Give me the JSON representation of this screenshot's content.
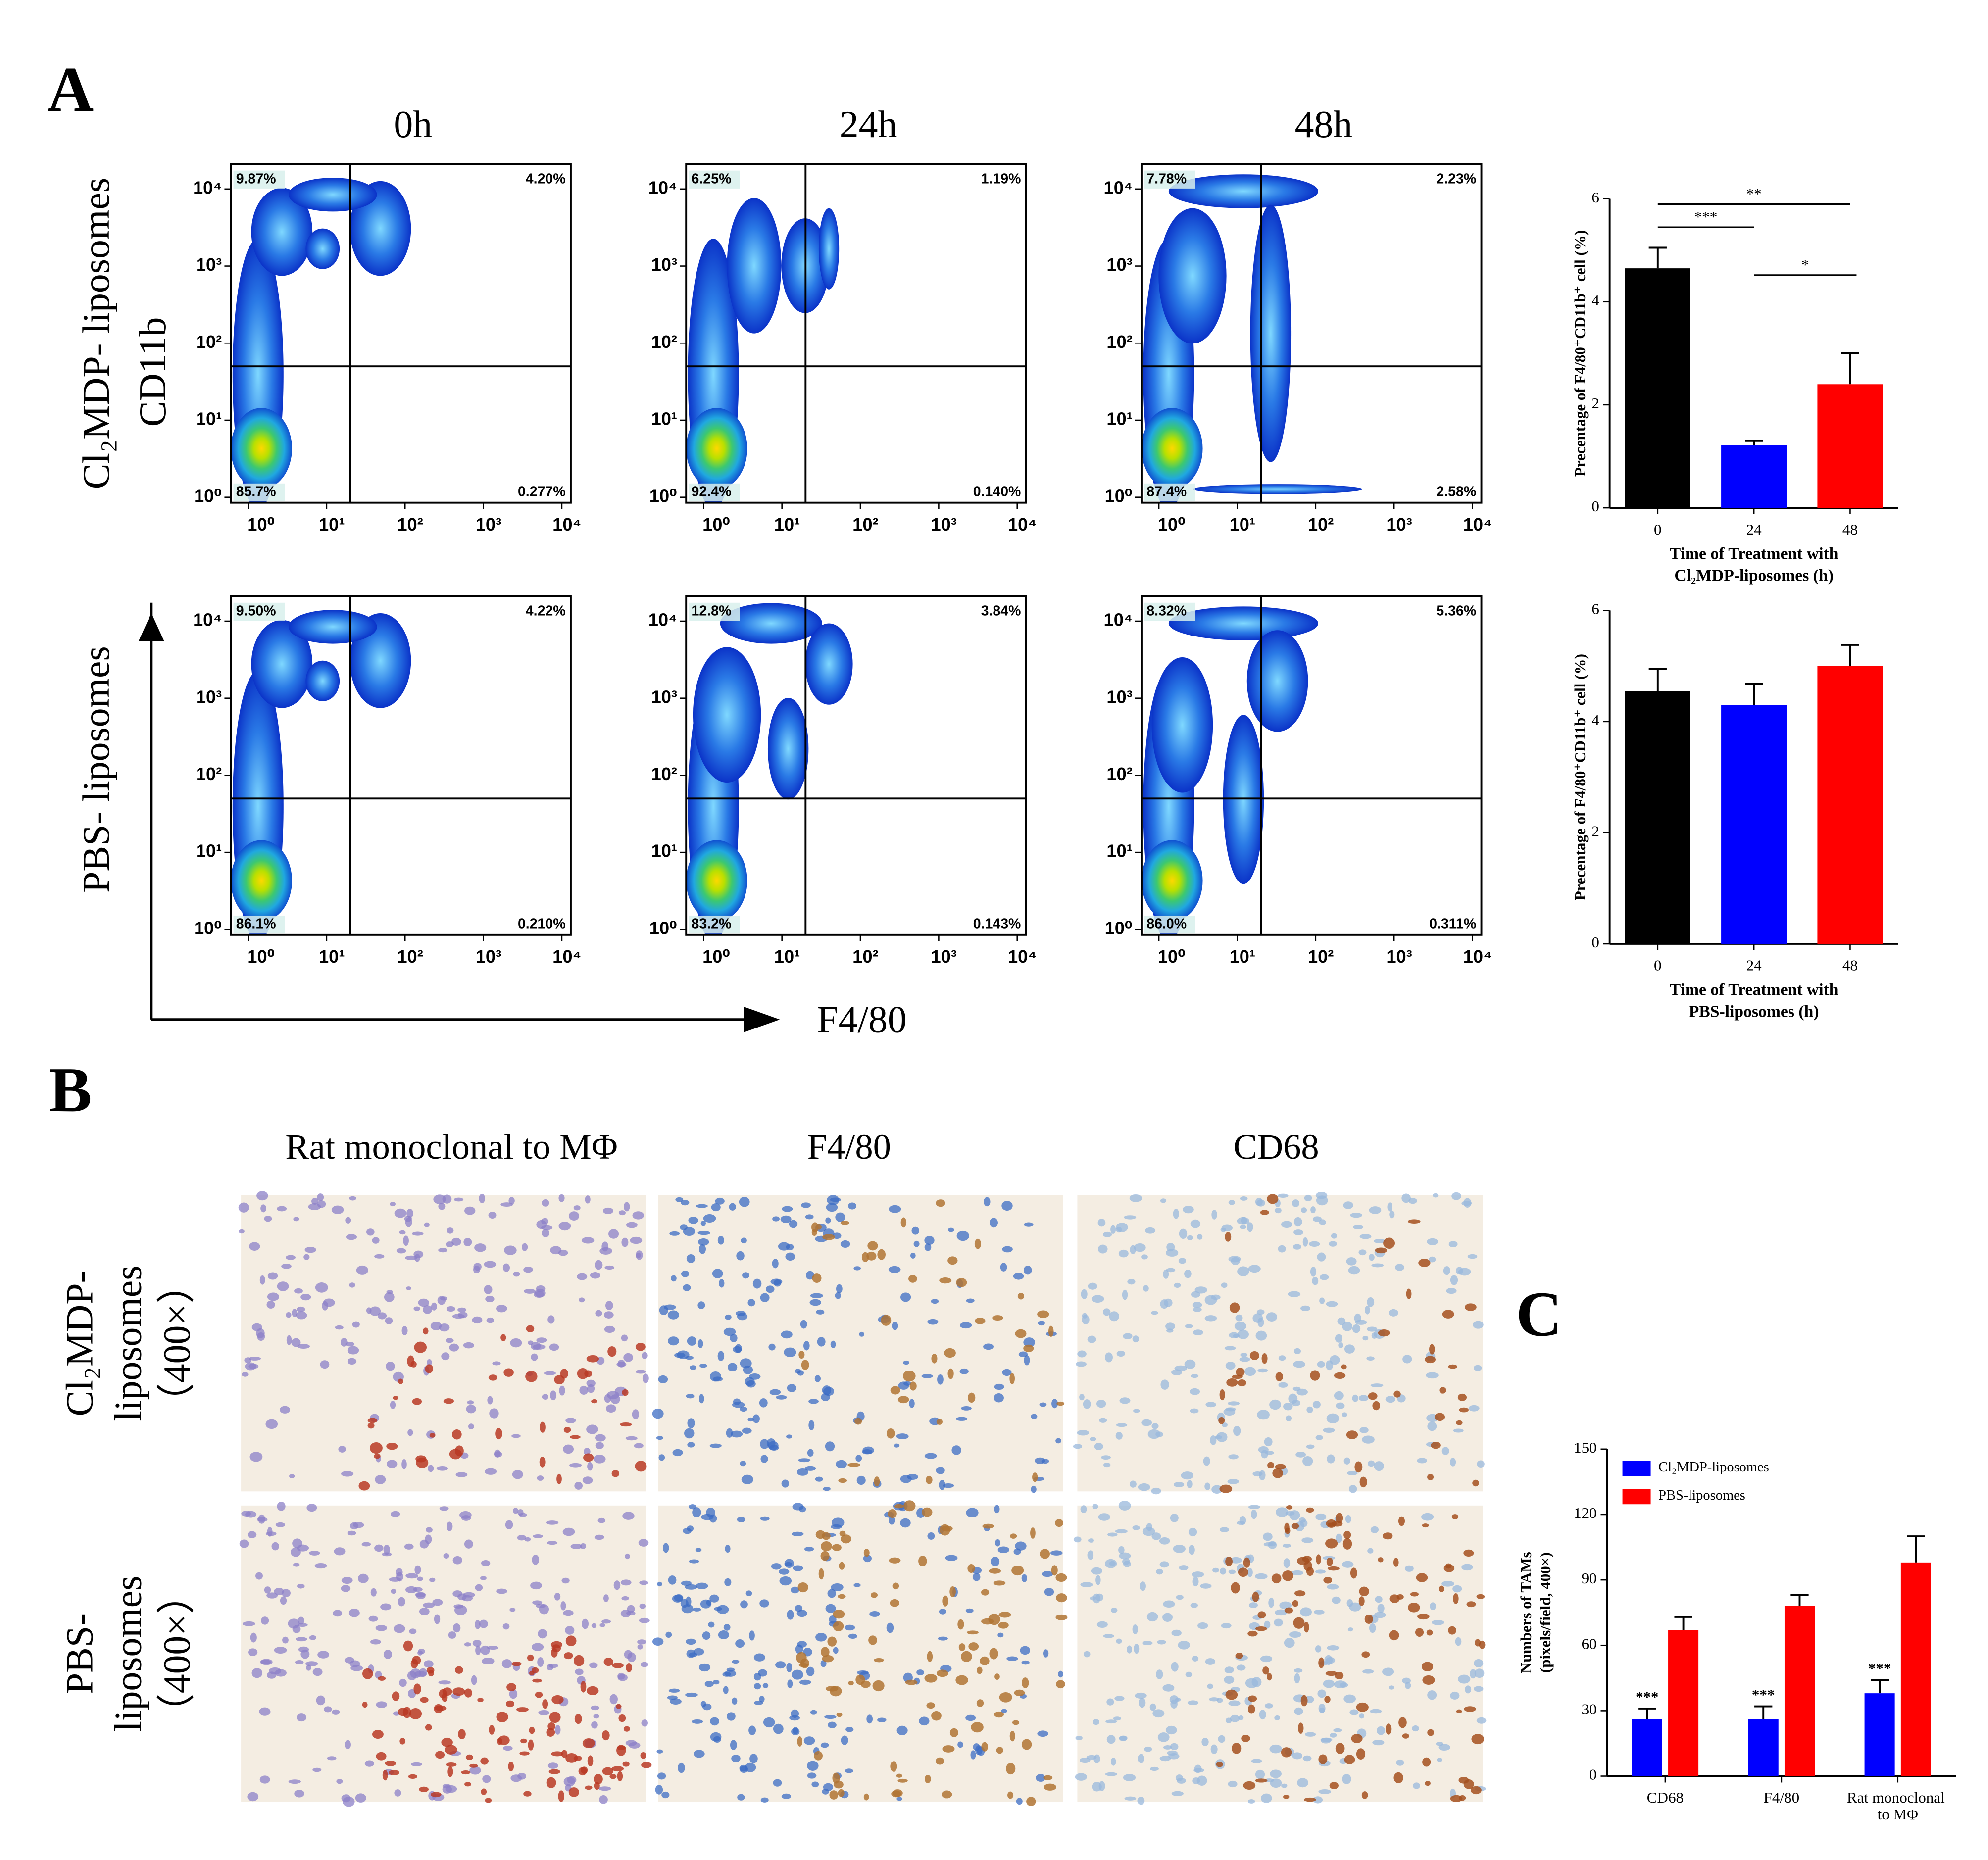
{
  "panel_labels": [
    "A",
    "B",
    "C"
  ],
  "flow_cytometry": {
    "columns": [
      "0h",
      "24h",
      "48h"
    ],
    "rows": [
      "Cl₂MDP- liposomes",
      "PBS- liposomes"
    ],
    "y_axis_label": "CD11b",
    "x_axis_label": "F4/80",
    "log_scale": true,
    "xlim": [
      0.6,
      13000
    ],
    "ylim": [
      0.85,
      21000
    ],
    "xticks": [
      {
        "value": 1,
        "label": "10⁰"
      },
      {
        "value": 10,
        "label": "10¹"
      },
      {
        "value": 100,
        "label": "10²"
      },
      {
        "value": 1000,
        "label": "10³"
      },
      {
        "value": 10000,
        "label": "10⁴"
      }
    ],
    "yticks": [
      {
        "value": 1,
        "label": "10⁰"
      },
      {
        "value": 10,
        "label": "10¹"
      },
      {
        "value": 100,
        "label": "10²"
      },
      {
        "value": 1000,
        "label": "10³"
      },
      {
        "value": 10000,
        "label": "10⁴"
      }
    ],
    "gates": {
      "x": 20,
      "y": 50
    },
    "plots": [
      {
        "quadrants": {
          "upper_left": "9.87%",
          "upper_right": "4.20%",
          "lower_left": "85.7%",
          "lower_right": "0.277%"
        }
      },
      {
        "quadrants": {
          "upper_left": "6.25%",
          "upper_right": "1.19%",
          "lower_left": "92.4%",
          "lower_right": "0.140%"
        }
      },
      {
        "quadrants": {
          "upper_left": "7.78%",
          "upper_right": "2.23%",
          "lower_left": "87.4%",
          "lower_right": "2.58%"
        }
      },
      {
        "quadrants": {
          "upper_left": "9.50%",
          "upper_right": "4.22%",
          "lower_left": "86.1%",
          "lower_right": "0.210%"
        }
      },
      {
        "quadrants": {
          "upper_left": "12.8%",
          "upper_right": "3.84%",
          "lower_left": "83.2%",
          "lower_right": "0.143%"
        }
      },
      {
        "quadrants": {
          "upper_left": "8.32%",
          "upper_right": "5.36%",
          "lower_left": "86.0%",
          "lower_right": "0.311%"
        }
      }
    ]
  },
  "chart_data": [
    {
      "type": "bar",
      "categories": [
        "0",
        "24",
        "48"
      ],
      "values": [
        4.65,
        1.22,
        2.4
      ],
      "errors": [
        0.4,
        0.08,
        0.6
      ],
      "colors": [
        "#000000",
        "#0000ff",
        "#ff0000"
      ],
      "ylim": [
        0,
        6
      ],
      "yticks": [
        0,
        2,
        4,
        6
      ],
      "y_label": "Precentage of F4/80⁺CD11b⁺ cell (%)",
      "x_label": [
        "Time of Treatment with",
        "Cl₂MDP-liposomes (h)"
      ],
      "annotations": [
        {
          "text": "***",
          "between": [
            0,
            1
          ]
        },
        {
          "text": "**",
          "between": [
            0,
            2
          ]
        },
        {
          "text": "*",
          "between": [
            1,
            2
          ]
        }
      ]
    },
    {
      "type": "bar",
      "categories": [
        "0",
        "24",
        "48"
      ],
      "values": [
        4.55,
        4.3,
        5.0
      ],
      "errors": [
        0.4,
        0.38,
        0.38
      ],
      "colors": [
        "#000000",
        "#0000ff",
        "#ff0000"
      ],
      "ylim": [
        0,
        6
      ],
      "yticks": [
        0,
        2,
        4,
        6
      ],
      "y_label": "Precentage of F4/80⁺CD11b⁺ cell (%)",
      "x_label": [
        "Time of Treatment with",
        "PBS-liposomes (h)"
      ]
    },
    {
      "type": "grouped_bar",
      "categories": [
        "CD68",
        "F4/80",
        "Rat monoclonal to MΦ"
      ],
      "series": [
        {
          "name": "Cl₂MDP-liposomes",
          "color": "#0000ff",
          "values": [
            26,
            26,
            38
          ],
          "errors": [
            5,
            6,
            6
          ],
          "annotations": [
            "***",
            "***",
            "***"
          ]
        },
        {
          "name": "PBS-liposomes",
          "color": "#ff0000",
          "values": [
            67,
            78,
            98
          ],
          "errors": [
            6,
            5,
            12
          ]
        }
      ],
      "ylim": [
        0,
        150
      ],
      "yticks": [
        0,
        30,
        60,
        90,
        120,
        150
      ],
      "y_label": [
        "Numbers of TAMs",
        "(pixels/field, 400×)"
      ]
    }
  ],
  "immunohistochemistry": {
    "columns": [
      "Rat monoclonal to MΦ",
      "F4/80",
      "CD68"
    ],
    "rows": [
      [
        "Cl₂MDP-",
        "liposomes",
        "（400×）"
      ],
      [
        "PBS-",
        "liposomes",
        "（400×）"
      ]
    ]
  }
}
